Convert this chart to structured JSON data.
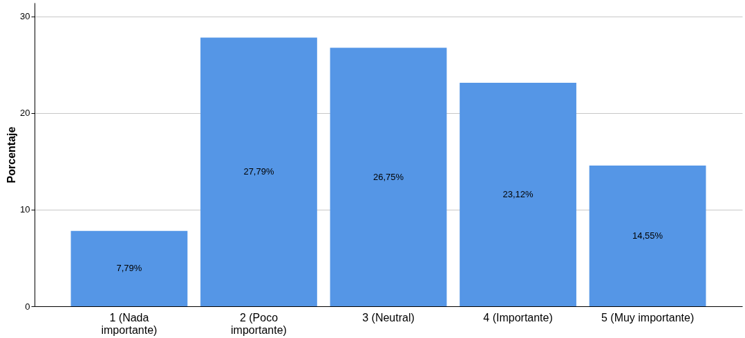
{
  "chart_data": {
    "type": "bar",
    "ylabel": "Porcentaje",
    "categories": [
      "1  (Nada\nimportante)",
      "2 (Poco\nimportante)",
      "3 (Neutral)",
      "4 (Importante)",
      "5 (Muy importante)"
    ],
    "values": [
      7.79,
      27.79,
      26.75,
      23.12,
      14.55
    ],
    "value_labels": [
      "7,79%",
      "27,79%",
      "26,75%",
      "23,12%",
      "14,55%"
    ],
    "color": "#5596e6",
    "ylim": [
      0,
      31.4
    ],
    "yticks": [
      0,
      10,
      20,
      30
    ],
    "grid": "y"
  }
}
